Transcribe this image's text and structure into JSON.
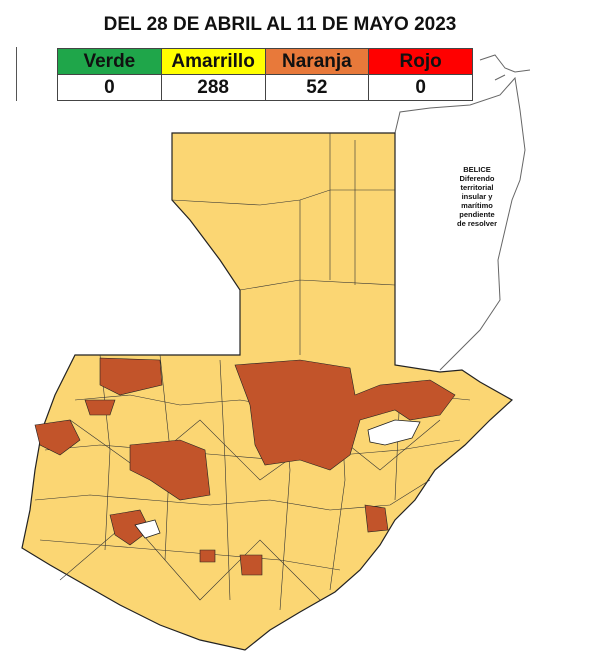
{
  "title": "DEL 28 DE ABRIL AL 11 DE MAYO 2023",
  "legend": {
    "headers": [
      "Verde",
      "Amarrillo",
      "Naranja",
      "Rojo"
    ],
    "values": [
      "0",
      "288",
      "52",
      "0"
    ],
    "colors": [
      "#1fa64a",
      "#ffff00",
      "#e8793a",
      "#ff0000"
    ]
  },
  "map": {
    "base_color": "#fbd673",
    "highlight_color": "#c2542a",
    "annotation": [
      "BELICE",
      "Diferendo",
      "territorial",
      "insular y",
      "marítimo",
      "pendiente",
      "de resolver"
    ]
  }
}
